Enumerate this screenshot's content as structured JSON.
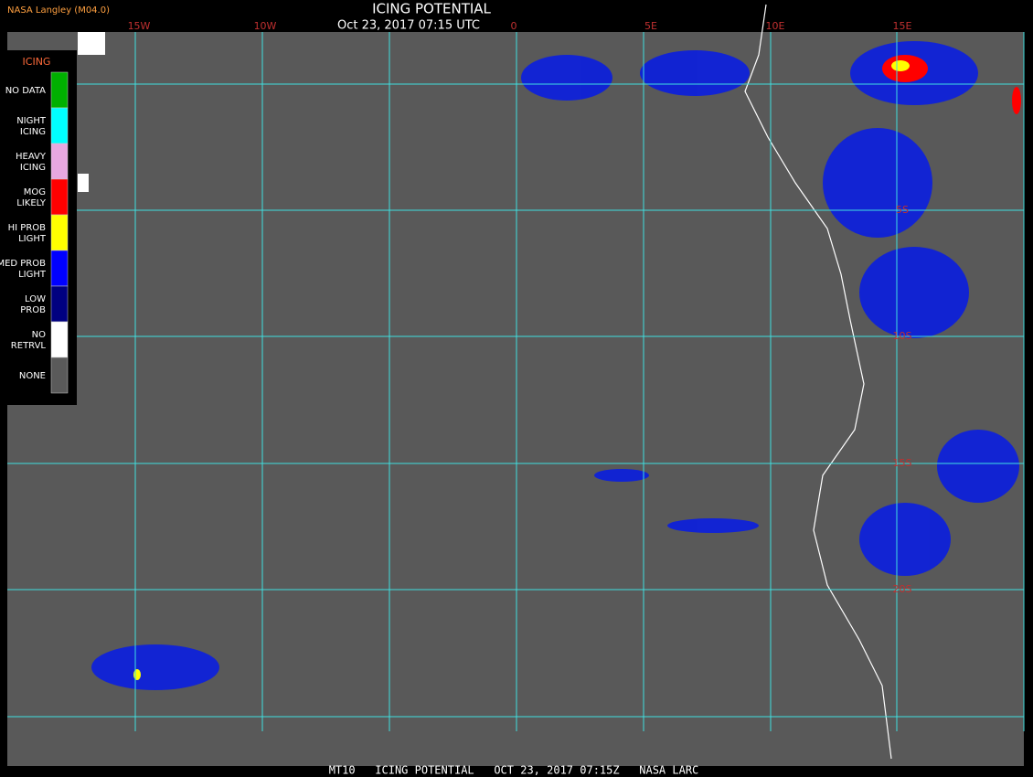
{
  "header": {
    "product": "NASA Langley (M04.0)",
    "title": "ICING POTENTIAL",
    "datetime": "Oct 23, 2017 07:15 UTC"
  },
  "grid": {
    "lon_labels": [
      "15W",
      "10W",
      "0",
      "5E",
      "10E",
      "15E"
    ],
    "lat_labels": [
      "5S",
      "10S",
      "15S",
      "20S"
    ],
    "color": "#40e0e0"
  },
  "legend": {
    "title": "ICING",
    "items": [
      {
        "lines": [
          "NO DATA"
        ],
        "color": "#00b000"
      },
      {
        "lines": [
          "NIGHT",
          "ICING"
        ],
        "color": "#00ffff"
      },
      {
        "lines": [
          "HEAVY",
          "ICING"
        ],
        "color": "#e8a8e0"
      },
      {
        "lines": [
          "MOG",
          "LIKELY"
        ],
        "color": "#ff0000"
      },
      {
        "lines": [
          "HI PROB",
          "LIGHT"
        ],
        "color": "#ffff00"
      },
      {
        "lines": [
          "MED PROB",
          "LIGHT"
        ],
        "color": "#0000ff"
      },
      {
        "lines": [
          "LOW",
          "PROB"
        ],
        "color": "#000080"
      },
      {
        "lines": [
          "NO",
          "RETRVL"
        ],
        "color": "#ffffff"
      },
      {
        "lines": [
          "NONE"
        ],
        "color": "#5a5a5a"
      }
    ]
  },
  "footer": {
    "caption": "MT10   ICING POTENTIAL   OCT 23, 2017 07:15Z   NASA LARC"
  }
}
